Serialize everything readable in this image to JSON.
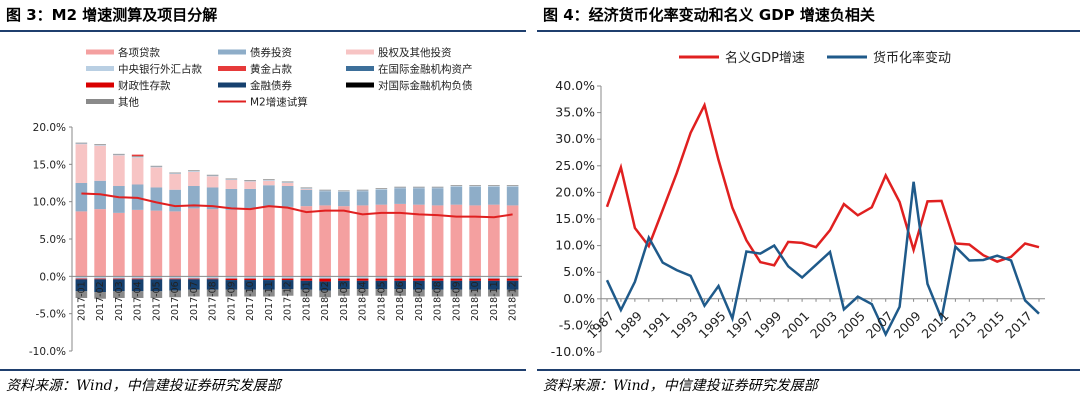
{
  "left": {
    "title": "图 3：M2 增速测算及项目分解",
    "source": "资料来源：Wind，中信建投证券研究发展部"
  },
  "right": {
    "title": "图 4：经济货币化率变动和名义 GDP 增速负相关",
    "source": "资料来源：Wind，中信建投证券研究发展部"
  },
  "colors": {
    "loans": "#f4a0a0",
    "bonds": "#8eadc8",
    "equity": "#f7c4c4",
    "fx_cb": "#b9cfe3",
    "gold": "#e63a3a",
    "intl_assets": "#3d6f9a",
    "fiscal": "#d90000",
    "fin_bonds": "#16406e",
    "intl_liab": "#000000",
    "other": "#8a8a8a",
    "m2_line": "#e02020",
    "gdp_line": "#e02020",
    "monetization_line": "#1f5a8a",
    "rule": "#1f3f6e"
  },
  "chart_data": [
    {
      "type": "bar",
      "stacked": true,
      "categories": [
        "2017-01",
        "2017-02",
        "2017-03",
        "2017-04",
        "2017-05",
        "2017-06",
        "2017-07",
        "2017-08",
        "2017-09",
        "2017-10",
        "2017-11",
        "2017-12",
        "2018-01",
        "2018-02",
        "2018-03",
        "2018-04",
        "2018-05",
        "2018-06",
        "2018-07",
        "2018-08",
        "2018-09",
        "2018-10",
        "2018-11",
        "2018-12"
      ],
      "tick_labels": [
        "2017-01",
        "2017-02",
        "2017-03",
        "2017-04",
        "2017-05",
        "2017-06",
        "2017-07",
        "2017-08",
        "2017-09",
        "2017-10",
        "2017-11",
        "2017-12",
        "2018-01",
        "2018-02",
        "2018-03",
        "2018-04",
        "2018-05",
        "2018-06",
        "2018-07",
        "2018-08",
        "2018-09",
        "2018-10",
        "2018-11",
        "2018-12"
      ],
      "legend": [
        [
          "各项贷款",
          "loans",
          "bar"
        ],
        [
          "债券投资",
          "bonds",
          "bar"
        ],
        [
          "股权及其他投资",
          "equity",
          "bar"
        ],
        [
          "中央银行外汇占款",
          "fx_cb",
          "bar"
        ],
        [
          "黄金占款",
          "gold",
          "bar"
        ],
        [
          "在国际金融机构资产",
          "intl_assets",
          "bar"
        ],
        [
          "财政性存款",
          "fiscal",
          "bar"
        ],
        [
          "金融债券",
          "fin_bonds",
          "bar"
        ],
        [
          "对国际金融机构负债",
          "intl_liab",
          "bar"
        ],
        [
          "其他",
          "other",
          "bar"
        ],
        [
          "M2增速试算",
          "m2_line",
          "line"
        ]
      ],
      "positive_series": [
        {
          "name": "各项贷款",
          "color_key": "loans",
          "values": [
            8.7,
            9.0,
            8.5,
            8.9,
            8.8,
            8.7,
            9.1,
            9.0,
            8.9,
            9.1,
            9.4,
            9.3,
            9.4,
            9.5,
            9.4,
            9.5,
            9.6,
            9.7,
            9.6,
            9.5,
            9.6,
            9.5,
            9.6,
            9.5
          ]
        },
        {
          "name": "债券投资",
          "color_key": "bonds",
          "values": [
            3.8,
            3.8,
            3.6,
            3.4,
            3.1,
            2.9,
            3.0,
            2.9,
            2.8,
            2.6,
            2.8,
            2.8,
            2.2,
            1.9,
            1.9,
            1.9,
            2.0,
            2.1,
            2.2,
            2.3,
            2.4,
            2.5,
            2.4,
            2.5
          ]
        },
        {
          "name": "股权及其他投资",
          "color_key": "equity",
          "values": [
            5.2,
            4.7,
            4.1,
            3.6,
            2.7,
            2.1,
            1.9,
            1.5,
            1.2,
            1.0,
            0.6,
            0.4,
            0.1,
            0.0,
            0.0,
            0.0,
            0.0,
            0.0,
            0.0,
            0.0,
            0.0,
            0.0,
            0.0,
            0.0
          ]
        },
        {
          "name": "中央银行外汇占款",
          "color_key": "fx_cb",
          "values": [
            0.1,
            0.1,
            0.1,
            0.1,
            0.1,
            0.1,
            0.1,
            0.1,
            0.1,
            0.1,
            0.1,
            0.1,
            0.1,
            0.1,
            0.1,
            0.1,
            0.1,
            0.1,
            0.1,
            0.1,
            0.1,
            0.1,
            0.1,
            0.1
          ]
        },
        {
          "name": "在国际金融机构资产",
          "color_key": "intl_assets",
          "values": [
            0.0,
            0.0,
            0.0,
            0.0,
            0.0,
            0.0,
            0.0,
            0.0,
            0.0,
            0.0,
            0.0,
            0.0,
            0.0,
            0.0,
            0.0,
            0.0,
            0.0,
            0.0,
            0.0,
            0.0,
            0.0,
            0.0,
            0.0,
            0.0
          ]
        },
        {
          "name": "其他",
          "color_key": "other",
          "values": [
            0.1,
            0.1,
            0.1,
            0.1,
            0.1,
            0.1,
            0.1,
            0.1,
            0.1,
            0.1,
            0.1,
            0.1,
            0.1,
            0.1,
            0.1,
            0.1,
            0.1,
            0.1,
            0.1,
            0.1,
            0.1,
            0.1,
            0.1,
            0.1
          ]
        },
        {
          "name": "黄金占款",
          "color_key": "gold",
          "values": [
            0,
            0,
            0,
            0.2,
            0,
            0,
            0,
            0,
            0,
            0,
            0,
            0,
            0,
            0,
            0,
            0,
            0,
            0,
            0,
            0,
            0,
            0,
            0,
            0
          ]
        }
      ],
      "negative_series": [
        {
          "name": "中央银行外汇占款",
          "color_key": "fx_cb",
          "values": [
            -0.3,
            -0.3,
            -0.3,
            -0.3,
            -0.3,
            -0.3,
            -0.3,
            -0.3,
            -0.3,
            -0.3,
            -0.3,
            -0.3,
            -0.3,
            -0.3,
            -0.3,
            -0.3,
            -0.3,
            -0.3,
            -0.3,
            -0.3,
            -0.3,
            -0.3,
            -0.3,
            -0.3
          ]
        },
        {
          "name": "财政性存款",
          "color_key": "fiscal",
          "values": [
            -0.1,
            -0.1,
            -0.1,
            -0.1,
            -0.1,
            -0.1,
            -0.1,
            -0.1,
            -0.2,
            -0.2,
            -0.2,
            -0.2,
            -0.3,
            -0.4,
            -0.3,
            -0.3,
            -0.3,
            -0.3,
            -0.3,
            -0.3,
            -0.3,
            -0.3,
            -0.3,
            -0.3
          ]
        },
        {
          "name": "金融债券",
          "color_key": "fin_bonds",
          "values": [
            -1.6,
            -1.7,
            -1.6,
            -1.6,
            -1.6,
            -1.5,
            -1.4,
            -1.4,
            -1.3,
            -1.3,
            -1.3,
            -1.2,
            -1.2,
            -1.2,
            -1.1,
            -1.1,
            -1.1,
            -1.1,
            -1.2,
            -1.2,
            -1.2,
            -1.2,
            -1.2,
            -1.2
          ]
        },
        {
          "name": "其他",
          "color_key": "other",
          "values": [
            -0.9,
            -0.9,
            -0.9,
            -0.9,
            -0.9,
            -0.9,
            -0.9,
            -0.9,
            -0.9,
            -0.9,
            -0.9,
            -0.9,
            -0.9,
            -0.9,
            -0.9,
            -0.9,
            -0.9,
            -0.9,
            -0.9,
            -0.9,
            -0.9,
            -0.9,
            -0.9,
            -0.9
          ]
        }
      ],
      "line": {
        "name": "M2增速试算",
        "color_key": "m2_line",
        "values": [
          11.1,
          11.0,
          10.6,
          10.5,
          9.9,
          9.4,
          9.5,
          9.4,
          9.1,
          9.0,
          9.4,
          9.2,
          8.6,
          8.8,
          8.8,
          8.3,
          8.5,
          8.5,
          8.3,
          8.2,
          8.0,
          8.0,
          7.9,
          8.3
        ]
      },
      "ylim": [
        -10,
        20
      ],
      "yticks": [
        -10,
        -5,
        0,
        5,
        10,
        15,
        20
      ],
      "ytick_labels": [
        "-10.0%",
        "-5.0%",
        "0.0%",
        "5.0%",
        "10.0%",
        "15.0%",
        "20.0%"
      ],
      "grid": false
    },
    {
      "type": "line",
      "x": [
        1987,
        1988,
        1989,
        1990,
        1991,
        1992,
        1993,
        1994,
        1995,
        1996,
        1997,
        1998,
        1999,
        2000,
        2001,
        2002,
        2003,
        2004,
        2005,
        2006,
        2007,
        2008,
        2009,
        2010,
        2011,
        2012,
        2013,
        2014,
        2015,
        2016,
        2017,
        2018
      ],
      "tick_labels": [
        "1987",
        "1989",
        "1991",
        "1993",
        "1995",
        "1997",
        "1999",
        "2001",
        "2003",
        "2005",
        "2007",
        "2009",
        "2011",
        "2013",
        "2015",
        "2017"
      ],
      "series": [
        {
          "name": "名义GDP增速",
          "color_key": "gdp_line",
          "values": [
            17.3,
            24.7,
            13.3,
            9.9,
            16.7,
            23.6,
            31.2,
            36.4,
            26.1,
            17.1,
            11.0,
            6.9,
            6.3,
            10.7,
            10.5,
            9.7,
            12.9,
            17.8,
            15.7,
            17.2,
            23.2,
            18.2,
            9.2,
            18.3,
            18.4,
            10.4,
            10.2,
            8.2,
            7.0,
            7.9,
            10.4,
            9.7
          ]
        },
        {
          "name": "货币化率变动",
          "color_key": "monetization_line",
          "values": [
            3.5,
            -2.1,
            3.2,
            11.5,
            6.8,
            5.4,
            4.3,
            -1.3,
            2.4,
            -3.7,
            8.9,
            8.5,
            10.0,
            6.1,
            4.0,
            6.4,
            8.8,
            -2.0,
            0.4,
            -1.0,
            -6.7,
            -1.5,
            22.0,
            2.8,
            -3.7,
            9.8,
            7.2,
            7.3,
            8.1,
            7.2,
            -0.3,
            -2.8
          ]
        }
      ],
      "ylim": [
        -10,
        40
      ],
      "yticks": [
        -10,
        -5,
        0,
        5,
        10,
        15,
        20,
        25,
        30,
        35,
        40
      ],
      "ytick_labels": [
        "-10.0%",
        "-5.0%",
        "0.0%",
        "5.0%",
        "10.0%",
        "15.0%",
        "20.0%",
        "25.0%",
        "30.0%",
        "35.0%",
        "40.0%"
      ],
      "legend_position": "top",
      "grid": false
    }
  ]
}
